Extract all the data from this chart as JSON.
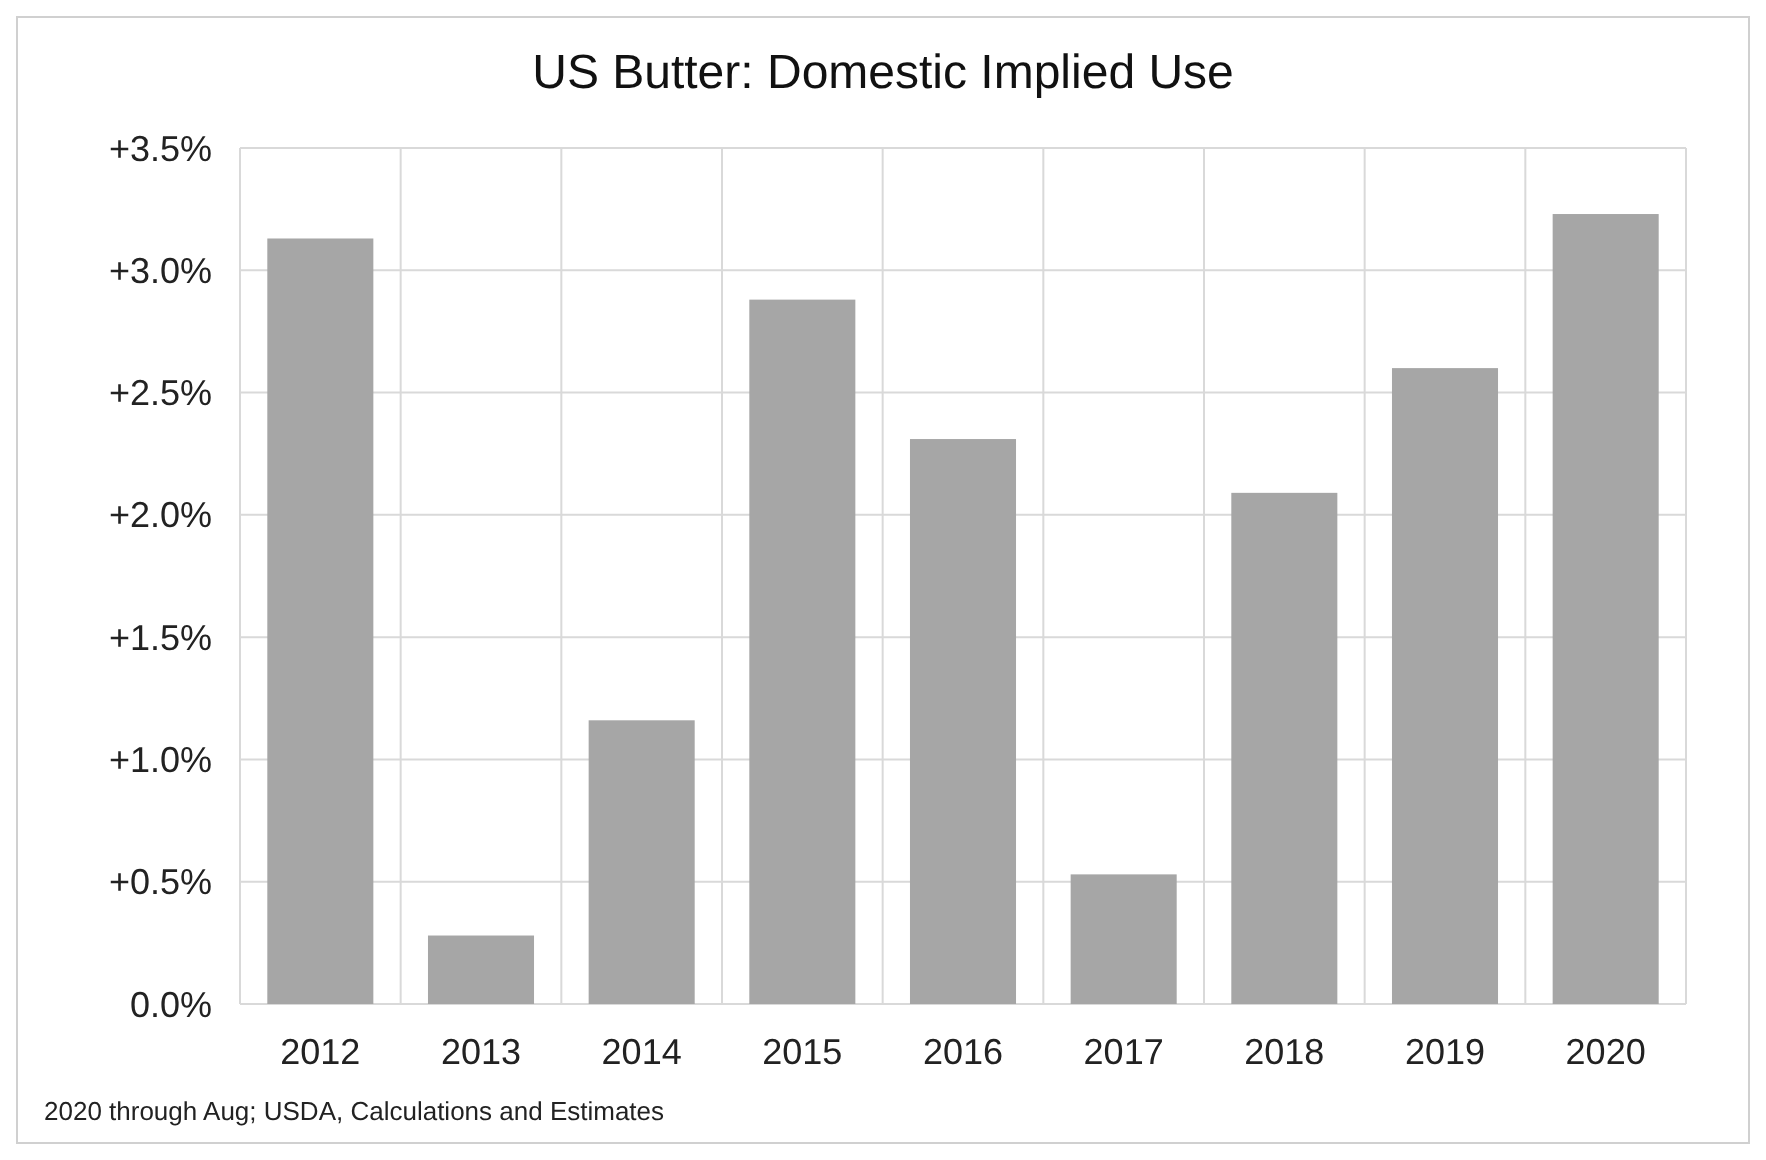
{
  "chart_data": {
    "type": "bar",
    "title": "US Butter: Domestic Implied Use",
    "categories": [
      "2012",
      "2013",
      "2014",
      "2015",
      "2016",
      "2017",
      "2018",
      "2019",
      "2020"
    ],
    "values": [
      3.13,
      0.28,
      1.16,
      2.88,
      2.31,
      0.53,
      2.09,
      2.6,
      3.23
    ],
    "color": "#a6a6a6",
    "ylim": [
      0,
      3.5
    ],
    "yticks": [
      {
        "value": 0,
        "label": "0.0%"
      },
      {
        "value": 0.5,
        "label": "+0.5%"
      },
      {
        "value": 1,
        "label": "+1.0%"
      },
      {
        "value": 1.5,
        "label": "+1.5%"
      },
      {
        "value": 2,
        "label": "+2.0%"
      },
      {
        "value": 2.5,
        "label": "+2.5%"
      },
      {
        "value": 3,
        "label": "+3.0%"
      },
      {
        "value": 3.5,
        "label": "+3.5%"
      }
    ],
    "grid": true,
    "annotations": [
      "2020 through Aug; USDA, Calculations and Estimates"
    ]
  }
}
